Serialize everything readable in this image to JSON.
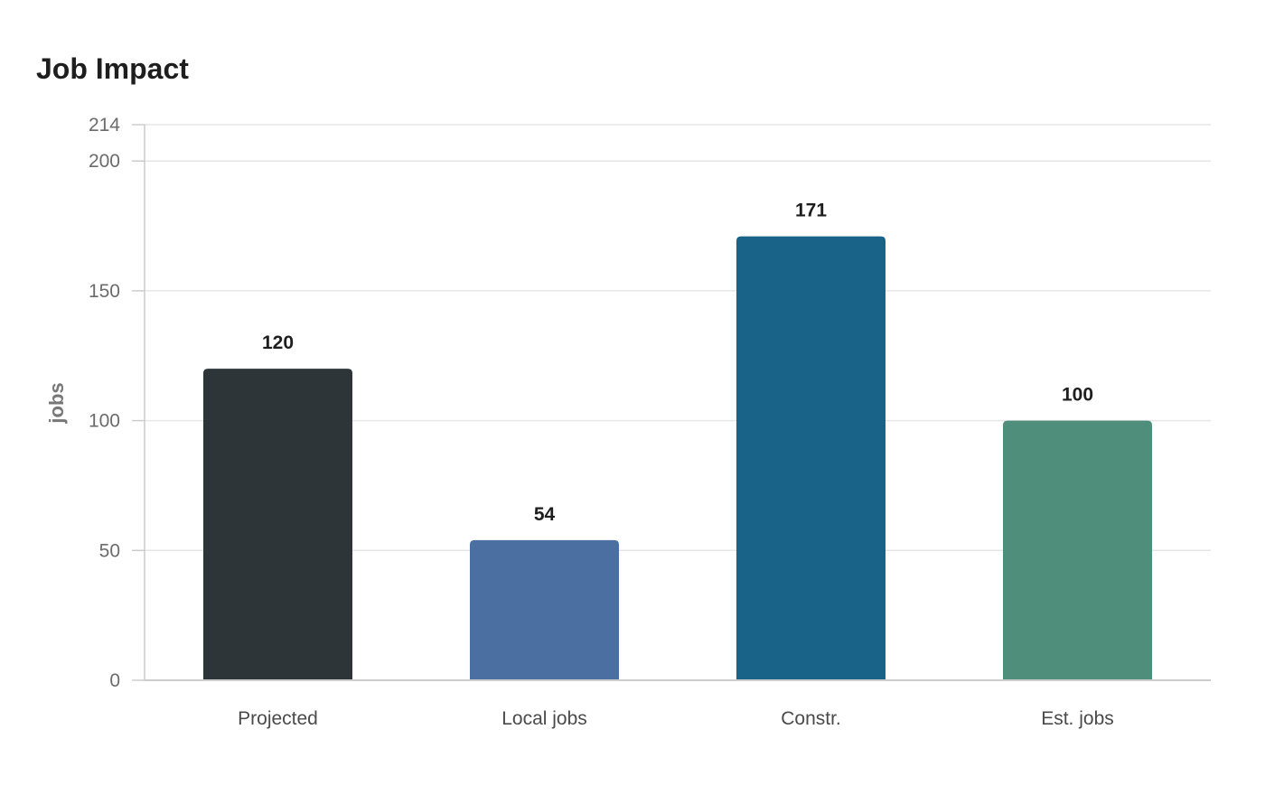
{
  "chart_data": {
    "type": "bar",
    "title": "Job Impact",
    "xlabel": "",
    "ylabel": "jobs",
    "categories": [
      "Projected",
      "Local jobs",
      "Constr.",
      "Est. jobs"
    ],
    "values": [
      120,
      54,
      171,
      100
    ],
    "ylim": [
      0,
      214
    ],
    "yticks": [
      0,
      50,
      100,
      150,
      200,
      214
    ],
    "grid": true,
    "legend": "none",
    "colors": [
      "#2e3538",
      "#4a6fa0",
      "#196388",
      "#4f8e7b"
    ],
    "gridline_color": "#e6e6e6",
    "axis_color": "#cccccc"
  }
}
